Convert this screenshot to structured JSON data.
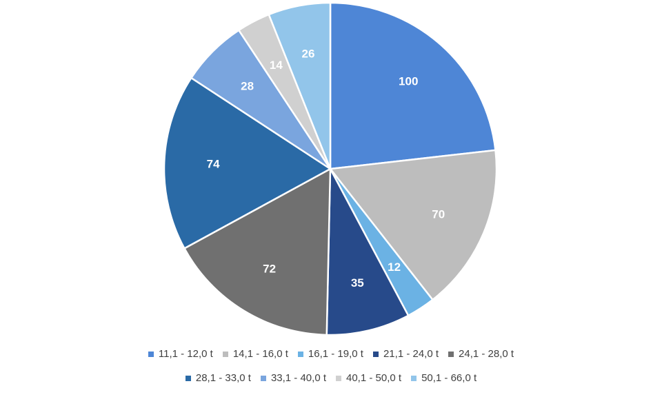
{
  "chart_data": {
    "type": "pie",
    "title": "",
    "categories": [
      "11,1 - 12,0 t",
      "14,1 - 16,0 t",
      "16,1 - 19,0 t",
      "21,1 - 24,0 t",
      "24,1 - 28,0 t",
      "28,1 - 33,0 t",
      "33,1 - 40,0 t",
      "40,1 - 50,0 t",
      "50,1 - 66,0 t"
    ],
    "values": [
      100,
      70,
      12,
      35,
      72,
      74,
      28,
      14,
      26
    ],
    "colors": [
      "#4e86d6",
      "#bdbdbd",
      "#6bb2e4",
      "#274a8a",
      "#707070",
      "#2a6aa6",
      "#7aa5de",
      "#d0d0d0",
      "#92c5ea"
    ],
    "start_angle": "12 o'clock",
    "direction": "clockwise",
    "legend_position": "bottom",
    "data_labels": true
  }
}
